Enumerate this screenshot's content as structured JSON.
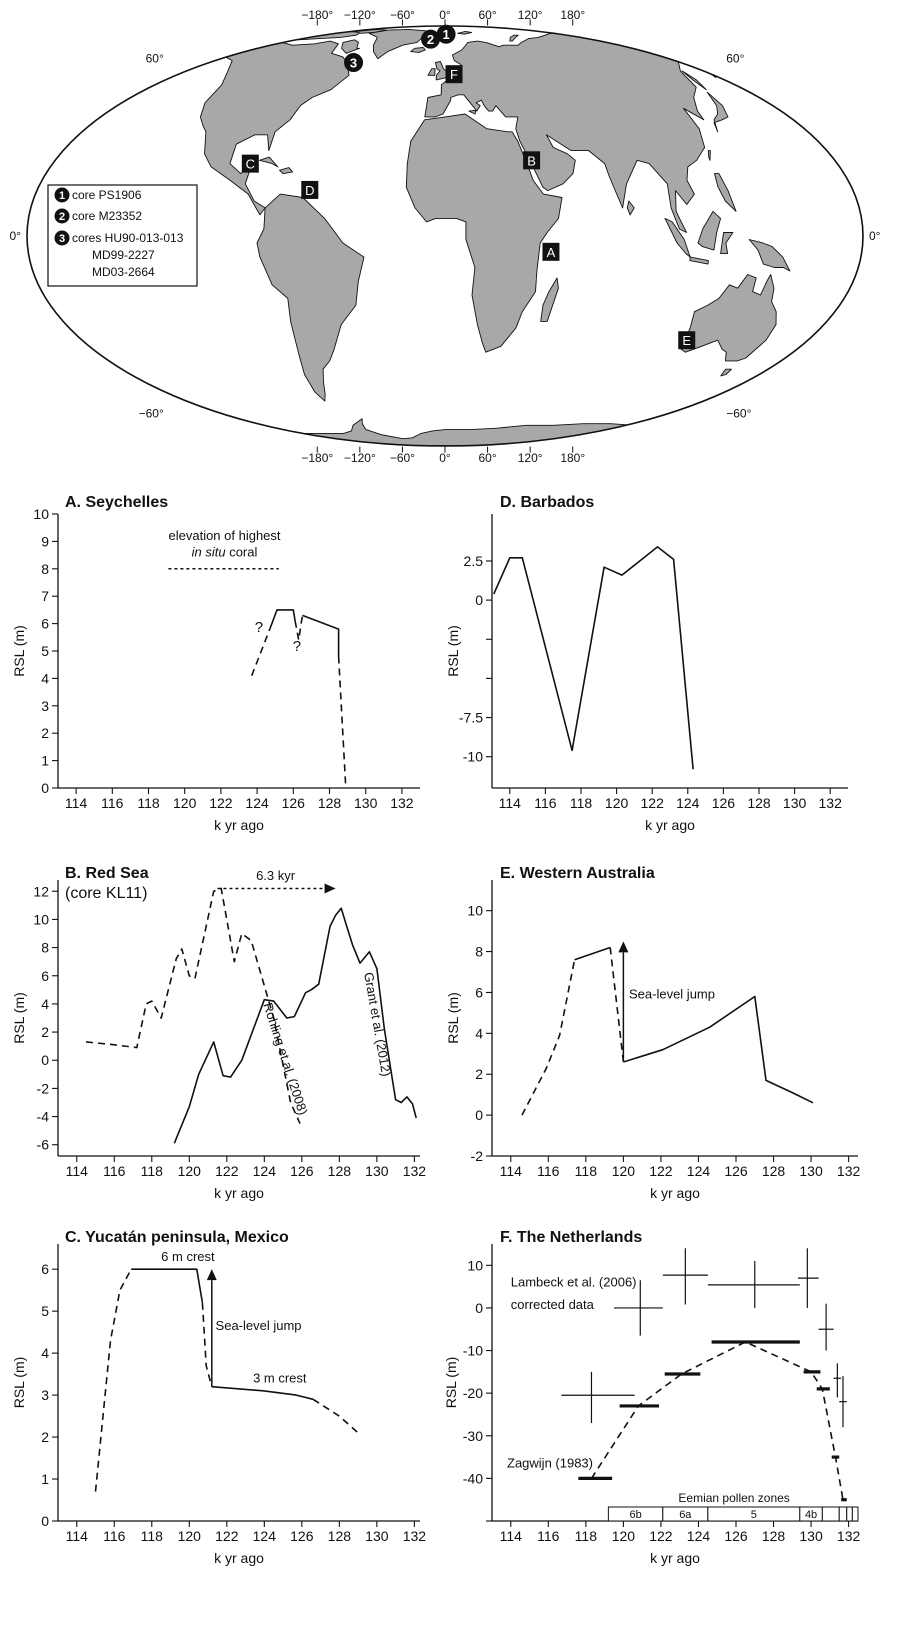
{
  "map": {
    "lon_top_labels": [
      "−180°",
      "−120°",
      "−60°",
      "0°",
      "60°",
      "120°",
      "180°"
    ],
    "lon_bottom_labels": [
      "−180°",
      "−120°",
      "−60°",
      "0°",
      "60°",
      "120°",
      "180°"
    ],
    "lat_left_labels": [
      "60°",
      "0°",
      "−60°"
    ],
    "lat_right_labels": [
      "60°",
      "0°",
      "−60°"
    ],
    "colors": {
      "land": "#a8a8a8",
      "ocean": "#ffffff",
      "outline": "#111111",
      "marker": "#111111"
    },
    "site_markers": [
      {
        "label": "A",
        "lon": 45.5,
        "lat": -4.5
      },
      {
        "label": "B",
        "lon": 39,
        "lat": 22
      },
      {
        "label": "C",
        "lon": -88,
        "lat": 21
      },
      {
        "label": "D",
        "lon": -59.5,
        "lat": 13.2
      },
      {
        "label": "E",
        "lon": 115,
        "lat": -31
      },
      {
        "label": "F",
        "lon": 5,
        "lat": 52.5
      }
    ],
    "core_markers": [
      {
        "label": "1",
        "lon": 1,
        "lat": 77
      },
      {
        "label": "2",
        "lon": -12,
        "lat": 72.5
      },
      {
        "label": "3",
        "lon": -58,
        "lat": 58
      }
    ],
    "legend": [
      {
        "num": "1",
        "text": "core PS1906"
      },
      {
        "num": "2",
        "text": "core M23352"
      },
      {
        "num": "3",
        "text": "cores HU90-013-013",
        "extra": [
          "MD99-2227",
          "MD03-2664"
        ]
      }
    ]
  },
  "chart_data": [
    {
      "type": "line",
      "title": "A. Seychelles",
      "xlabel": "k yr ago",
      "ylabel": "RSL (m)",
      "xlim": [
        113,
        133
      ],
      "ylim": [
        0,
        10
      ],
      "xticks": [
        114,
        116,
        118,
        120,
        122,
        124,
        126,
        128,
        130,
        132
      ],
      "yticks": [
        0,
        1,
        2,
        3,
        4,
        5,
        6,
        7,
        8,
        9,
        10
      ],
      "series": [
        {
          "style": "dashed",
          "points": [
            [
              123.7,
              4.1
            ],
            [
              124.7,
              5.8
            ]
          ]
        },
        {
          "style": "solid",
          "points": [
            [
              124.7,
              5.8
            ],
            [
              125.1,
              6.5
            ],
            [
              126.0,
              6.5
            ],
            [
              126.1,
              6.1
            ]
          ]
        },
        {
          "style": "dashed",
          "points": [
            [
              126.1,
              6.1
            ],
            [
              126.3,
              5.4
            ],
            [
              126.5,
              6.3
            ]
          ]
        },
        {
          "style": "solid",
          "points": [
            [
              126.5,
              6.3
            ],
            [
              128.5,
              5.8
            ],
            [
              128.5,
              4.8
            ]
          ]
        },
        {
          "style": "dashed",
          "points": [
            [
              128.5,
              4.8
            ],
            [
              128.9,
              0
            ]
          ]
        },
        {
          "style": "dotted",
          "points": [
            [
              119.1,
              8.0
            ],
            [
              125.2,
              8.0
            ]
          ]
        }
      ],
      "annotations": [
        {
          "text": "elevation of highest",
          "x": 122.2,
          "y": 9.05
        },
        {
          "text": "in situ",
          "tail": " coral",
          "italic": true,
          "x": 122.2,
          "y": 8.45
        },
        {
          "text": "?",
          "x": 124.1,
          "y": 5.7
        },
        {
          "text": "?",
          "x": 126.2,
          "y": 5.0
        }
      ]
    },
    {
      "type": "line",
      "title": "D. Barbados",
      "xlabel": "k yr ago",
      "ylabel": "RSL (m)",
      "xlim": [
        113,
        133
      ],
      "ylim": [
        -12,
        5.5
      ],
      "xticks": [
        114,
        116,
        118,
        120,
        122,
        124,
        126,
        128,
        130,
        132
      ],
      "yticks": [
        -10,
        -7.5,
        -5,
        -2.5,
        0,
        2.5
      ],
      "ytick_labels": [
        "-10",
        "-7.5",
        "",
        "",
        "0",
        "2.5"
      ],
      "series": [
        {
          "style": "solid",
          "points": [
            [
              113.1,
              0.4
            ],
            [
              114.0,
              2.7
            ],
            [
              114.7,
              2.7
            ],
            [
              117.5,
              -9.6
            ],
            [
              119.3,
              2.1
            ],
            [
              120.3,
              1.6
            ],
            [
              122.3,
              3.4
            ],
            [
              123.2,
              2.6
            ],
            [
              124.3,
              -10.8
            ]
          ]
        }
      ]
    },
    {
      "type": "line",
      "title": "B. Red Sea",
      "subtitle": "(core KL11)",
      "xlabel": "k yr ago",
      "ylabel": "RSL (m)",
      "xlim": [
        113,
        132.3
      ],
      "ylim": [
        -6.8,
        12.8
      ],
      "xticks": [
        114,
        116,
        118,
        120,
        122,
        124,
        126,
        128,
        130,
        132
      ],
      "yticks": [
        -6,
        -4,
        -2,
        0,
        2,
        4,
        6,
        8,
        10,
        12
      ],
      "series": [
        {
          "name": "Rohling et al. (2008)",
          "style": "dashed",
          "points": [
            [
              114.5,
              1.3
            ],
            [
              116.0,
              1.1
            ],
            [
              117.2,
              0.9
            ],
            [
              117.7,
              4.0
            ],
            [
              118.0,
              4.2
            ],
            [
              118.5,
              3.0
            ],
            [
              119.3,
              7.2
            ],
            [
              119.6,
              7.9
            ],
            [
              120.0,
              6.0
            ],
            [
              120.3,
              5.8
            ],
            [
              121.3,
              12.0
            ],
            [
              121.7,
              12.2
            ],
            [
              122.4,
              7.0
            ],
            [
              122.8,
              9.0
            ],
            [
              123.3,
              8.5
            ],
            [
              124.5,
              3.0
            ],
            [
              125.4,
              -3.0
            ],
            [
              125.9,
              -4.5
            ]
          ]
        },
        {
          "name": "Grant et al. (2012)",
          "style": "solid",
          "points": [
            [
              119.2,
              -5.9
            ],
            [
              120.0,
              -3.3
            ],
            [
              120.5,
              -1.0
            ],
            [
              121.3,
              1.3
            ],
            [
              121.8,
              -1.1
            ],
            [
              122.2,
              -1.2
            ],
            [
              122.8,
              0.0
            ],
            [
              123.5,
              2.5
            ],
            [
              124.0,
              4.3
            ],
            [
              124.5,
              4.2
            ],
            [
              125.2,
              3.0
            ],
            [
              125.6,
              3.1
            ],
            [
              126.2,
              4.8
            ],
            [
              126.5,
              5.0
            ],
            [
              126.9,
              5.4
            ],
            [
              127.5,
              9.5
            ],
            [
              127.8,
              10.3
            ],
            [
              128.1,
              10.8
            ],
            [
              128.4,
              9.5
            ],
            [
              128.7,
              8.2
            ],
            [
              129.1,
              6.9
            ],
            [
              129.6,
              7.7
            ],
            [
              130.0,
              6.5
            ],
            [
              130.4,
              2.2
            ],
            [
              131.0,
              -2.8
            ],
            [
              131.3,
              -3.0
            ],
            [
              131.6,
              -2.6
            ],
            [
              131.9,
              -3.1
            ],
            [
              132.1,
              -4.1
            ]
          ]
        }
      ],
      "annotations": [
        {
          "text": "6.3 kyr",
          "x": 124.6,
          "y": 12.8
        },
        {
          "text": "Rohling et al. (2008)",
          "x": 124.9,
          "y": 0.0,
          "rotate": 72
        },
        {
          "text": "Grant et al. (2012)",
          "x": 129.8,
          "y": 2.5,
          "rotate": 80
        }
      ],
      "arrows": [
        {
          "style": "dotted",
          "from": [
            121.5,
            12.2
          ],
          "to": [
            127.8,
            12.2
          ]
        }
      ]
    },
    {
      "type": "line",
      "title": "E. Western Australia",
      "xlabel": "k yr ago",
      "ylabel": "RSL (m)",
      "xlim": [
        113,
        132.5
      ],
      "ylim": [
        -2,
        11.5
      ],
      "xticks": [
        114,
        116,
        118,
        120,
        122,
        124,
        126,
        128,
        130,
        132
      ],
      "yticks": [
        -2,
        0,
        2,
        4,
        6,
        8,
        10
      ],
      "series": [
        {
          "style": "dashed",
          "points": [
            [
              114.6,
              0.0
            ],
            [
              115.9,
              2.3
            ],
            [
              116.6,
              3.9
            ],
            [
              117.4,
              7.6
            ]
          ]
        },
        {
          "style": "solid",
          "points": [
            [
              117.4,
              7.6
            ],
            [
              119.3,
              8.2
            ]
          ]
        },
        {
          "style": "dashed",
          "points": [
            [
              119.3,
              8.2
            ],
            [
              120.0,
              2.6
            ]
          ]
        },
        {
          "style": "solid",
          "points": [
            [
              120.0,
              2.6
            ],
            [
              122.1,
              3.2
            ],
            [
              124.6,
              4.3
            ],
            [
              127.0,
              5.8
            ],
            [
              127.6,
              1.7
            ],
            [
              129.0,
              1.1
            ],
            [
              130.1,
              0.6
            ]
          ]
        }
      ],
      "annotations": [
        {
          "text": "Sea-level jump",
          "x": 120.3,
          "y": 5.7
        }
      ],
      "arrows": [
        {
          "style": "solid",
          "from": [
            120.0,
            2.6
          ],
          "to": [
            120.0,
            8.5
          ]
        }
      ]
    },
    {
      "type": "line",
      "title": "C. Yucatán peninsula, Mexico",
      "xlabel": "k yr ago",
      "ylabel": "RSL (m)",
      "xlim": [
        113,
        132.3
      ],
      "ylim": [
        0,
        6.6
      ],
      "xticks": [
        114,
        116,
        118,
        120,
        122,
        124,
        126,
        128,
        130,
        132
      ],
      "yticks": [
        0,
        1,
        2,
        3,
        4,
        5,
        6
      ],
      "series": [
        {
          "style": "dashed",
          "points": [
            [
              115.0,
              0.7
            ],
            [
              115.4,
              2.5
            ],
            [
              115.8,
              4.3
            ],
            [
              116.3,
              5.5
            ],
            [
              116.9,
              6.0
            ]
          ]
        },
        {
          "style": "solid",
          "points": [
            [
              116.9,
              6.0
            ],
            [
              120.4,
              6.0
            ],
            [
              120.7,
              5.2
            ]
          ]
        },
        {
          "style": "dashed",
          "points": [
            [
              120.7,
              5.2
            ],
            [
              120.9,
              3.7
            ],
            [
              121.2,
              3.2
            ]
          ]
        },
        {
          "style": "solid",
          "points": [
            [
              121.2,
              3.2
            ],
            [
              124.0,
              3.1
            ],
            [
              125.7,
              3.0
            ],
            [
              126.6,
              2.9
            ]
          ]
        },
        {
          "style": "dashed",
          "points": [
            [
              126.6,
              2.9
            ],
            [
              128.0,
              2.5
            ],
            [
              129.0,
              2.1
            ]
          ]
        }
      ],
      "annotations": [
        {
          "text": "6 m crest",
          "x": 118.5,
          "y": 6.2
        },
        {
          "text": "Sea-level jump",
          "x": 121.4,
          "y": 4.55
        },
        {
          "text": "3 m crest",
          "x": 123.4,
          "y": 3.3
        }
      ],
      "arrows": [
        {
          "style": "solid",
          "from": [
            121.2,
            3.2
          ],
          "to": [
            121.2,
            6.0
          ]
        }
      ]
    },
    {
      "type": "line",
      "title": "F. The Netherlands",
      "xlabel": "k yr ago",
      "ylabel": "RSL (m)",
      "xlim": [
        113,
        132.5
      ],
      "ylim": [
        -50,
        15
      ],
      "xticks": [
        114,
        116,
        118,
        120,
        122,
        124,
        126,
        128,
        130,
        132
      ],
      "yticks": [
        -50,
        -40,
        -30,
        -20,
        -10,
        0,
        10
      ],
      "ytick_labels": [
        "",
        "-40",
        "-30",
        "-20",
        "-10",
        "0",
        "10"
      ],
      "series": [
        {
          "name": "Zagwijn (1983)",
          "style": "dashed",
          "points": [
            [
              118.3,
              -40.0
            ],
            [
              120.8,
              -23.0
            ],
            [
              123.1,
              -15.5
            ],
            [
              126.5,
              -8.0
            ],
            [
              130.0,
              -15.0
            ],
            [
              130.6,
              -19.0
            ],
            [
              131.3,
              -35.0
            ],
            [
              131.7,
              -45.0
            ]
          ]
        }
      ],
      "bars": [
        {
          "x1": 117.6,
          "x2": 119.4,
          "y": -40.0
        },
        {
          "x1": 119.8,
          "x2": 121.9,
          "y": -23.0
        },
        {
          "x1": 122.2,
          "x2": 124.1,
          "y": -15.5
        },
        {
          "x1": 124.7,
          "x2": 129.4,
          "y": -8.0
        },
        {
          "x1": 129.6,
          "x2": 130.5,
          "y": -15.0
        },
        {
          "x1": 130.3,
          "x2": 131.0,
          "y": -19.0
        },
        {
          "x1": 131.1,
          "x2": 131.5,
          "y": -35.0
        },
        {
          "x1": 131.6,
          "x2": 131.9,
          "y": -45.0
        }
      ],
      "crosses": [
        {
          "x": 118.3,
          "y": -20.5,
          "x1": 116.7,
          "x2": 120.6,
          "y1": -27.0,
          "y2": -15.0
        },
        {
          "x": 120.9,
          "y": 0.0,
          "x1": 119.5,
          "x2": 122.1,
          "y1": -6.5,
          "y2": 6.5
        },
        {
          "x": 123.3,
          "y": 7.7,
          "x1": 122.1,
          "x2": 124.5,
          "y1": 0.8,
          "y2": 14.0
        },
        {
          "x": 127.0,
          "y": 5.4,
          "x1": 124.5,
          "x2": 129.4,
          "y1": 0.0,
          "y2": 11.0
        },
        {
          "x": 129.8,
          "y": 7.0,
          "x1": 129.3,
          "x2": 130.4,
          "y1": 0.0,
          "y2": 14.0
        },
        {
          "x": 130.8,
          "y": -5.0,
          "x1": 130.4,
          "x2": 131.2,
          "y1": -10.0,
          "y2": 1.0
        },
        {
          "x": 131.4,
          "y": -16.5,
          "x1": 131.2,
          "x2": 131.6,
          "y1": -21.0,
          "y2": -13.0
        },
        {
          "x": 131.7,
          "y": -22.0,
          "x1": 131.5,
          "x2": 131.9,
          "y1": -28.0,
          "y2": -16.0
        }
      ],
      "annotations": [
        {
          "text": "Lambeck et al. (2006)",
          "x": 114.0,
          "y": 5.0
        },
        {
          "text": "corrected data",
          "x": 114.0,
          "y": -0.2
        },
        {
          "text": "Zagwijn (1983)",
          "x": 113.8,
          "y": -37.4
        }
      ],
      "pollen_zones": {
        "label": "Eemian pollen zones",
        "zones": [
          {
            "name": "6b",
            "x1": 119.2,
            "x2": 122.1
          },
          {
            "name": "6a",
            "x1": 122.1,
            "x2": 124.5
          },
          {
            "name": "5",
            "x1": 124.5,
            "x2": 129.4
          },
          {
            "name": "4b",
            "x1": 129.4,
            "x2": 130.6
          },
          {
            "name": "",
            "x1": 130.6,
            "x2": 131.5
          },
          {
            "name": "",
            "x1": 131.5,
            "x2": 131.9
          },
          {
            "name": "",
            "x1": 131.9,
            "x2": 132.2
          },
          {
            "name": "",
            "x1": 132.2,
            "x2": 132.5
          }
        ]
      }
    }
  ]
}
